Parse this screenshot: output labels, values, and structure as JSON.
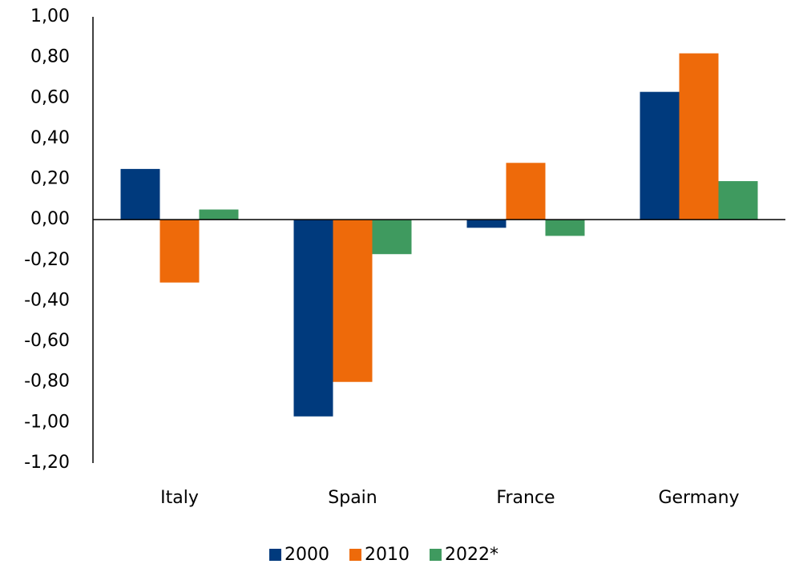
{
  "chart_data": {
    "type": "bar",
    "categories": [
      "Italy",
      "Spain",
      "France",
      "Germany"
    ],
    "series": [
      {
        "name": "2000",
        "color": "#003a7d",
        "values": [
          0.25,
          -0.97,
          -0.04,
          0.63
        ]
      },
      {
        "name": "2010",
        "color": "#ee6a0a",
        "values": [
          -0.31,
          -0.8,
          0.28,
          0.82
        ]
      },
      {
        "name": "2022*",
        "color": "#3f9a5f",
        "values": [
          0.05,
          -0.17,
          -0.08,
          0.19
        ]
      }
    ],
    "ylim": [
      -1.2,
      1.0
    ],
    "yticks": [
      {
        "value": -1.2,
        "label": "-1,20"
      },
      {
        "value": -1.0,
        "label": "-1,00"
      },
      {
        "value": -0.8,
        "label": "-0,80"
      },
      {
        "value": -0.6,
        "label": "-0,60"
      },
      {
        "value": -0.4,
        "label": "-0,40"
      },
      {
        "value": -0.2,
        "label": "-0,20"
      },
      {
        "value": 0,
        "label": "0,00"
      },
      {
        "value": 0.2,
        "label": "0,20"
      },
      {
        "value": 0.4,
        "label": "0,40"
      },
      {
        "value": 0.6,
        "label": "0,60"
      },
      {
        "value": 0.8,
        "label": "0,80"
      },
      {
        "value": 1.0,
        "label": "1,00"
      }
    ],
    "grid": false,
    "legend": "bottom"
  }
}
